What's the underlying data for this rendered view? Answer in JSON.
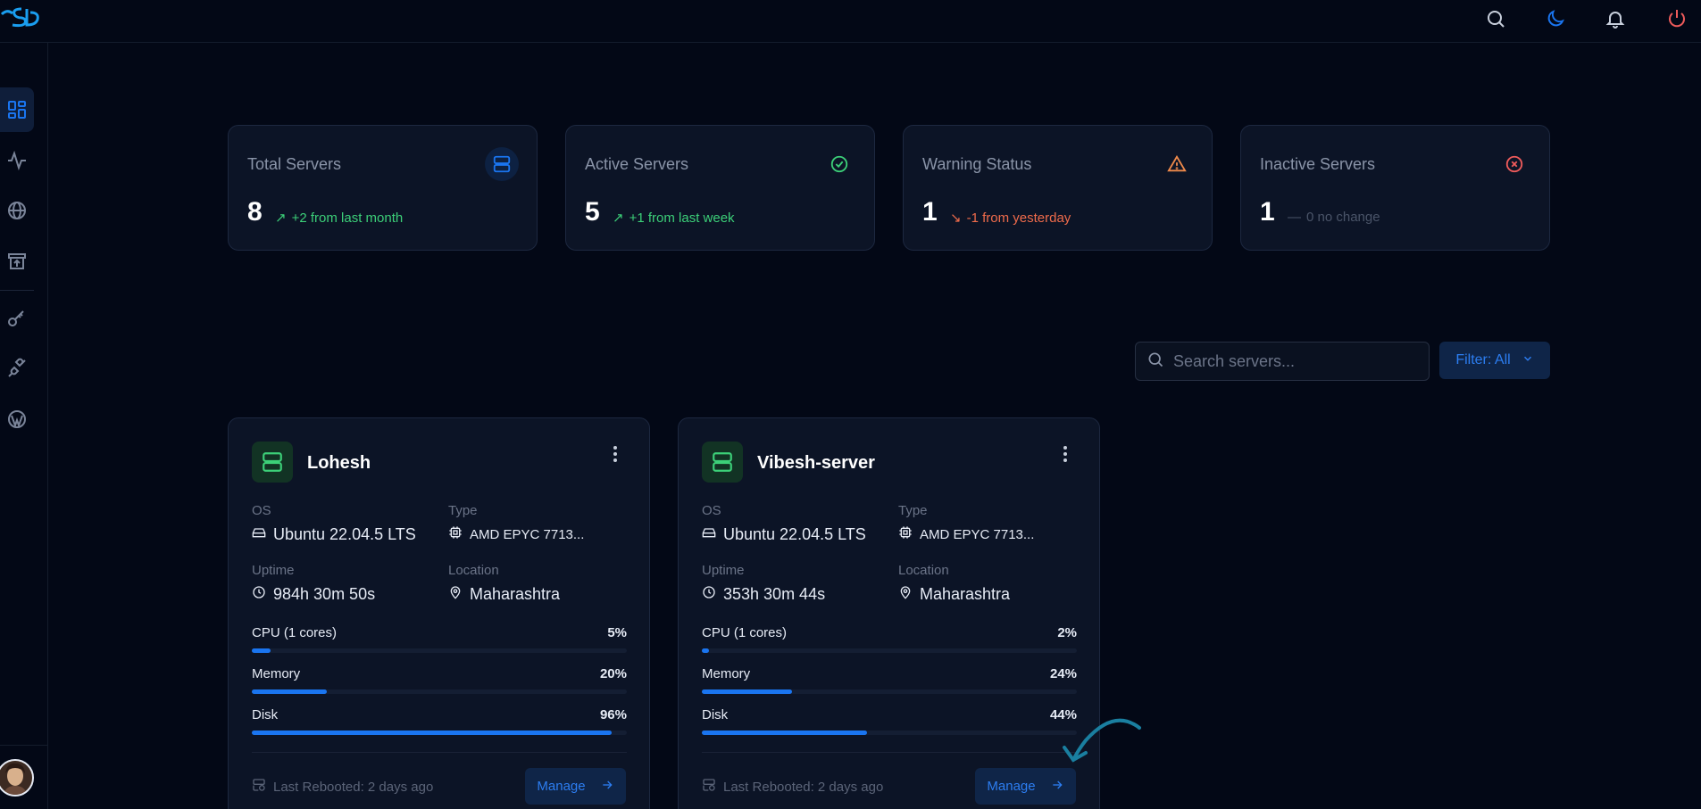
{
  "app": {
    "logo_text": "SD"
  },
  "colors": {
    "accent": "#1a75f0",
    "success": "#3ccf78",
    "warning": "#f08a4b",
    "danger": "#ef5b5b",
    "background": "#030816",
    "card": "#0c1426"
  },
  "topbar": {
    "icons": [
      "search-icon",
      "moon-icon",
      "bell-icon",
      "power-icon"
    ]
  },
  "sidebar": {
    "items": [
      "dashboard-icon",
      "activity-icon",
      "globe-icon",
      "archive-icon",
      "key-icon",
      "plug-icon",
      "wordpress-icon"
    ]
  },
  "stats": [
    {
      "title": "Total Servers",
      "value": "8",
      "delta": "+2 from last month",
      "trend": "up"
    },
    {
      "title": "Active Servers",
      "value": "5",
      "delta": "+1 from last week",
      "trend": "up"
    },
    {
      "title": "Warning Status",
      "value": "1",
      "delta": "-1 from yesterday",
      "trend": "down"
    },
    {
      "title": "Inactive Servers",
      "value": "1",
      "delta": "0 no change",
      "trend": "flat"
    }
  ],
  "search": {
    "placeholder": "Search servers..."
  },
  "filter": {
    "label": "Filter: All"
  },
  "labels": {
    "os": "OS",
    "type": "Type",
    "uptime": "Uptime",
    "location": "Location",
    "cpu": "CPU (1 cores)",
    "memory": "Memory",
    "disk": "Disk",
    "manage": "Manage"
  },
  "servers": [
    {
      "name": "Lohesh",
      "os": "Ubuntu 22.04.5 LTS",
      "type": "AMD EPYC 7713...",
      "uptime": "984h 30m 50s",
      "location": "Maharashtra",
      "cpu": "5%",
      "memory": "20%",
      "disk": "96%",
      "cpu_value": 5,
      "memory_value": 20,
      "disk_value": 96,
      "rebooted": "Last Rebooted: 2 days ago"
    },
    {
      "name": "Vibesh-server",
      "os": "Ubuntu 22.04.5 LTS",
      "type": "AMD EPYC 7713...",
      "uptime": "353h 30m 44s",
      "location": "Maharashtra",
      "cpu": "2%",
      "memory": "24%",
      "disk": "44%",
      "cpu_value": 2,
      "memory_value": 24,
      "disk_value": 44,
      "rebooted": "Last Rebooted: 2 days ago"
    }
  ]
}
